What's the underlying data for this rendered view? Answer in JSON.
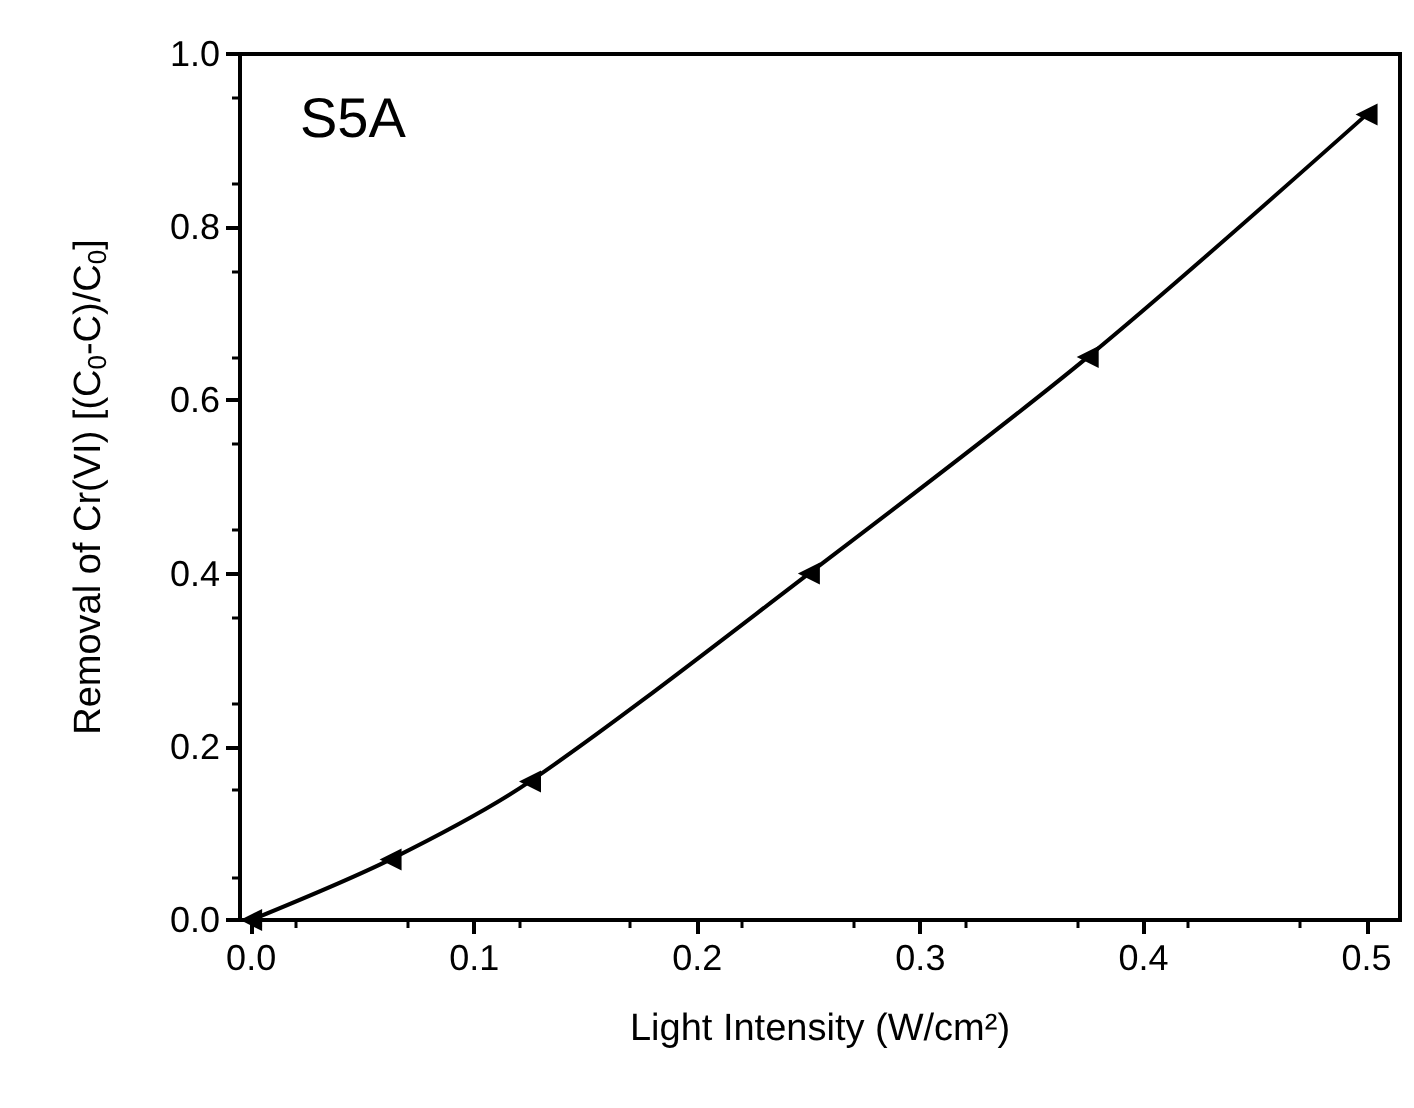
{
  "chart_data": {
    "type": "line",
    "xlabel": "Light Intensity (W/cm²)",
    "ylabel": "Removal of Cr(VI) [(C$_{0}$-C)/C$_{0}$]",
    "annotations": [
      "S5A"
    ],
    "x": [
      0,
      0.0625,
      0.125,
      0.25,
      0.375,
      0.5
    ],
    "series": [
      {
        "color": "#000000",
        "values": [
          0,
          0.07,
          0.16,
          0.4,
          0.65,
          0.93
        ]
      }
    ],
    "xlim": [
      -0.005,
      0.515
    ],
    "xticks": [
      {
        "value": 0,
        "label": "0.0"
      },
      0.1,
      0.2,
      0.3,
      0.4,
      0.5
    ],
    "ylim": [
      0,
      1
    ],
    "yticks": [
      {
        "value": 0,
        "label": "0.0"
      },
      0.2,
      0.4,
      0.6,
      0.8,
      {
        "value": 1,
        "label": "1.0"
      }
    ],
    "marker": "triangle",
    "line_style": "solid",
    "grid": false
  }
}
